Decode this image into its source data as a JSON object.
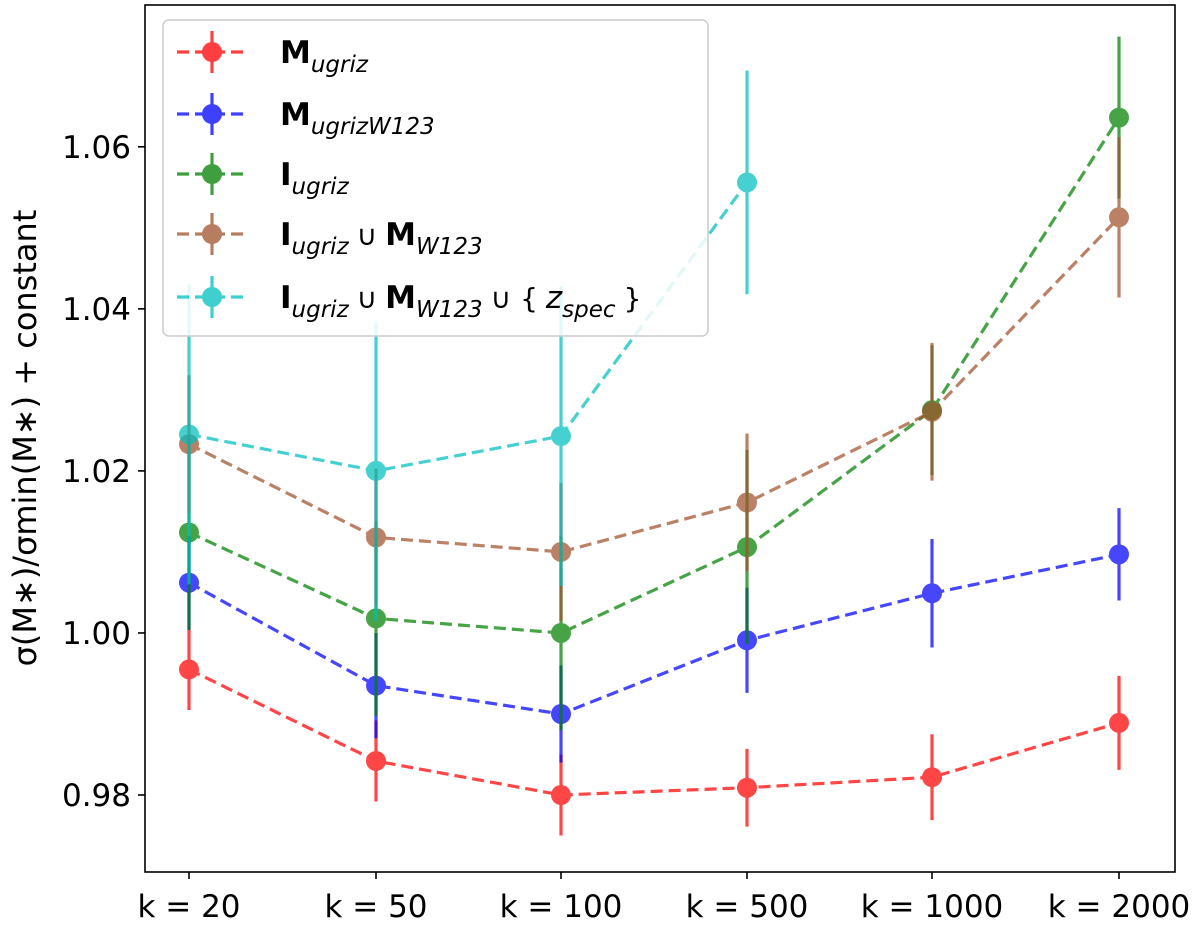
{
  "chart_data": {
    "type": "line",
    "title": "",
    "xlabel": "",
    "ylabel": "σ(M∗)/σmin(M∗) + constant",
    "categories": [
      "k = 20",
      "k = 50",
      "k = 100",
      "k = 500",
      "k = 1000",
      "k = 2000"
    ],
    "yticks": [
      "0.98",
      "1.00",
      "1.02",
      "1.04",
      "1.06"
    ],
    "ytick_values": [
      0.98,
      1.0,
      1.02,
      1.04,
      1.06
    ],
    "ylim": [
      0.9705,
      1.0775
    ],
    "grid": false,
    "legend_position": "upper-left",
    "series": [
      {
        "name": "M_ugriz",
        "legend": {
          "main": "M",
          "sub": "ugriz",
          "rest": []
        },
        "color": "#ff0000",
        "values": [
          0.9955,
          0.9842,
          0.98,
          0.9809,
          0.9822,
          0.9889
        ],
        "errors": [
          0.005,
          0.005,
          0.005,
          0.0048,
          0.0053,
          0.0058
        ]
      },
      {
        "name": "M_ugrizW123",
        "legend": {
          "main": "M",
          "sub": "ugrizW123",
          "rest": []
        },
        "color": "#0000ff",
        "values": [
          1.0062,
          0.9935,
          0.99,
          0.9991,
          1.0049,
          1.0097
        ],
        "errors": [
          0.0058,
          0.0065,
          0.006,
          0.0065,
          0.0067,
          0.0057
        ]
      },
      {
        "name": "I_ugriz",
        "legend": {
          "main": "I",
          "sub": "ugriz",
          "rest": []
        },
        "color": "#008000",
        "values": [
          1.0124,
          1.0018,
          1.0,
          1.0106,
          1.0275,
          1.0636
        ],
        "errors": [
          0.012,
          0.012,
          0.012,
          0.012,
          0.008,
          0.01
        ]
      },
      {
        "name": "I_ugriz ∪ M_W123",
        "legend": {
          "main": "I",
          "sub": "ugriz",
          "rest": [
            {
              "t": "∪",
              "s": ""
            },
            {
              "t": "M",
              "s": "W123"
            }
          ]
        },
        "color": "#a0522d",
        "values": [
          1.0233,
          1.0118,
          1.01,
          1.0161,
          1.0273,
          1.0513
        ],
        "errors": [
          0.0085,
          0.0085,
          0.0085,
          0.0085,
          0.0085,
          0.0099
        ]
      },
      {
        "name": "I_ugriz ∪ M_W123 ∪ {z_spec}",
        "legend": {
          "main": "I",
          "sub": "ugriz",
          "rest": [
            {
              "t": "∪",
              "s": ""
            },
            {
              "t": "M",
              "s": "W123"
            },
            {
              "t": "∪ {",
              "s": ""
            },
            {
              "t": "z",
              "s": "spec"
            },
            {
              "t": "}",
              "s": ""
            }
          ]
        },
        "color": "#00bfbf",
        "values": [
          1.0245,
          1.02,
          1.0243,
          1.0556,
          null,
          null
        ],
        "errors": [
          0.0185,
          0.0185,
          0.0185,
          0.0138,
          null,
          null
        ]
      }
    ]
  }
}
